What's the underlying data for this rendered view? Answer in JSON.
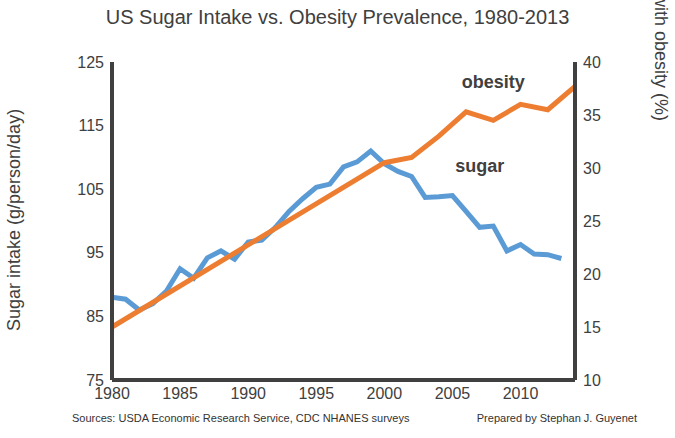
{
  "chart_data": {
    "type": "line",
    "title": "US Sugar Intake vs. Obesity Prevalence, 1980-2013",
    "y_label": "Sugar intake (g/person/day)",
    "y2_label": "Adults with obesity (%)",
    "annotations": [
      "Sources: USDA Economic Research Service, CDC NHANES surveys",
      "Prepared by Stephan J. Guyenet"
    ],
    "xlim": [
      1980,
      2014
    ],
    "xticks": [
      1980,
      1985,
      1990,
      1995,
      2000,
      2005,
      2010
    ],
    "ylim": [
      75,
      125
    ],
    "yticks": [
      75,
      85,
      95,
      105,
      115,
      125
    ],
    "y2lim": [
      10,
      40
    ],
    "y2ticks": [
      10,
      15,
      20,
      25,
      30,
      35,
      40
    ],
    "grid": false,
    "series": [
      {
        "name": "sugar",
        "color": "#5b9bd5",
        "x": [
          1980,
          1981,
          1982,
          1983,
          1984,
          1985,
          1986,
          1987,
          1988,
          1989,
          1990,
          1991,
          1992,
          1993,
          1994,
          1995,
          1996,
          1997,
          1998,
          1999,
          2000,
          2001,
          2002,
          2003,
          2004,
          2005,
          2006,
          2007,
          2008,
          2009,
          2010,
          2011,
          2012,
          2013
        ],
        "values": [
          88,
          87.7,
          86,
          87,
          89,
          92.5,
          91,
          94.2,
          95.3,
          94,
          96.7,
          97,
          99,
          101.5,
          103.5,
          105.3,
          105.8,
          108.5,
          109.3,
          111,
          109,
          107.8,
          107,
          103.7,
          103.8,
          104,
          101.5,
          99,
          99.2,
          95.3,
          96.3,
          94.8,
          94.7,
          94.1
        ]
      },
      {
        "name": "obesity",
        "color": "#ed7d31",
        "axis": "y2",
        "x": [
          1980,
          2000,
          2002,
          2004,
          2006,
          2008,
          2010,
          2012,
          2014
        ],
        "values": [
          15,
          30.5,
          31,
          33,
          35.3,
          34.5,
          36,
          35.5,
          37.7
        ]
      }
    ]
  }
}
